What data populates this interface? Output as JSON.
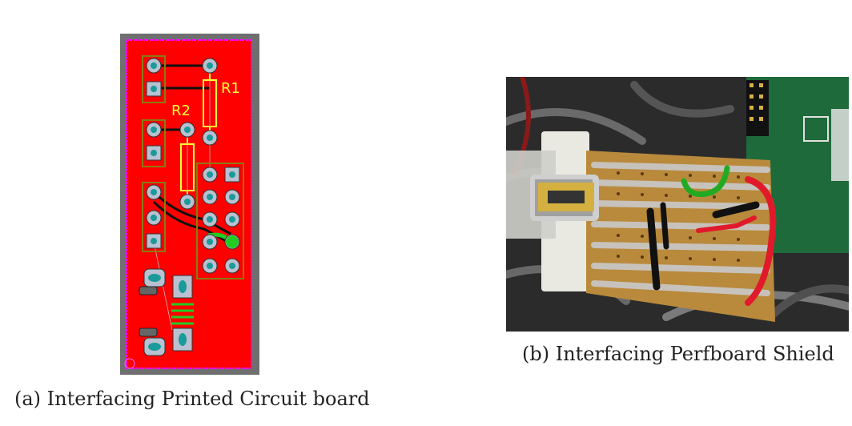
{
  "figure": {
    "subfigures": [
      {
        "id": "a",
        "caption": "(a) Interfacing Printed Circuit board",
        "pcb_labels": {
          "r1": "R1",
          "r2": "R2"
        },
        "colors": {
          "background": "#6f6f6f",
          "copper": "#ff0000",
          "outline": "#ff00ff",
          "silkscreen": "#ffff33",
          "pad": "#1a9a9a",
          "highlight": "#22cc22"
        }
      },
      {
        "id": "b",
        "caption": "(b) Interfacing Perfboard Shield",
        "colors": {
          "background": "#2b2b2b",
          "board": "#b98a3c",
          "solder": "#c9c9c9",
          "wire_green": "#22aa22",
          "wire_red": "#e01a2a",
          "wire_black": "#111111",
          "raspberry_pi": "#1f6a3a"
        }
      }
    ]
  }
}
